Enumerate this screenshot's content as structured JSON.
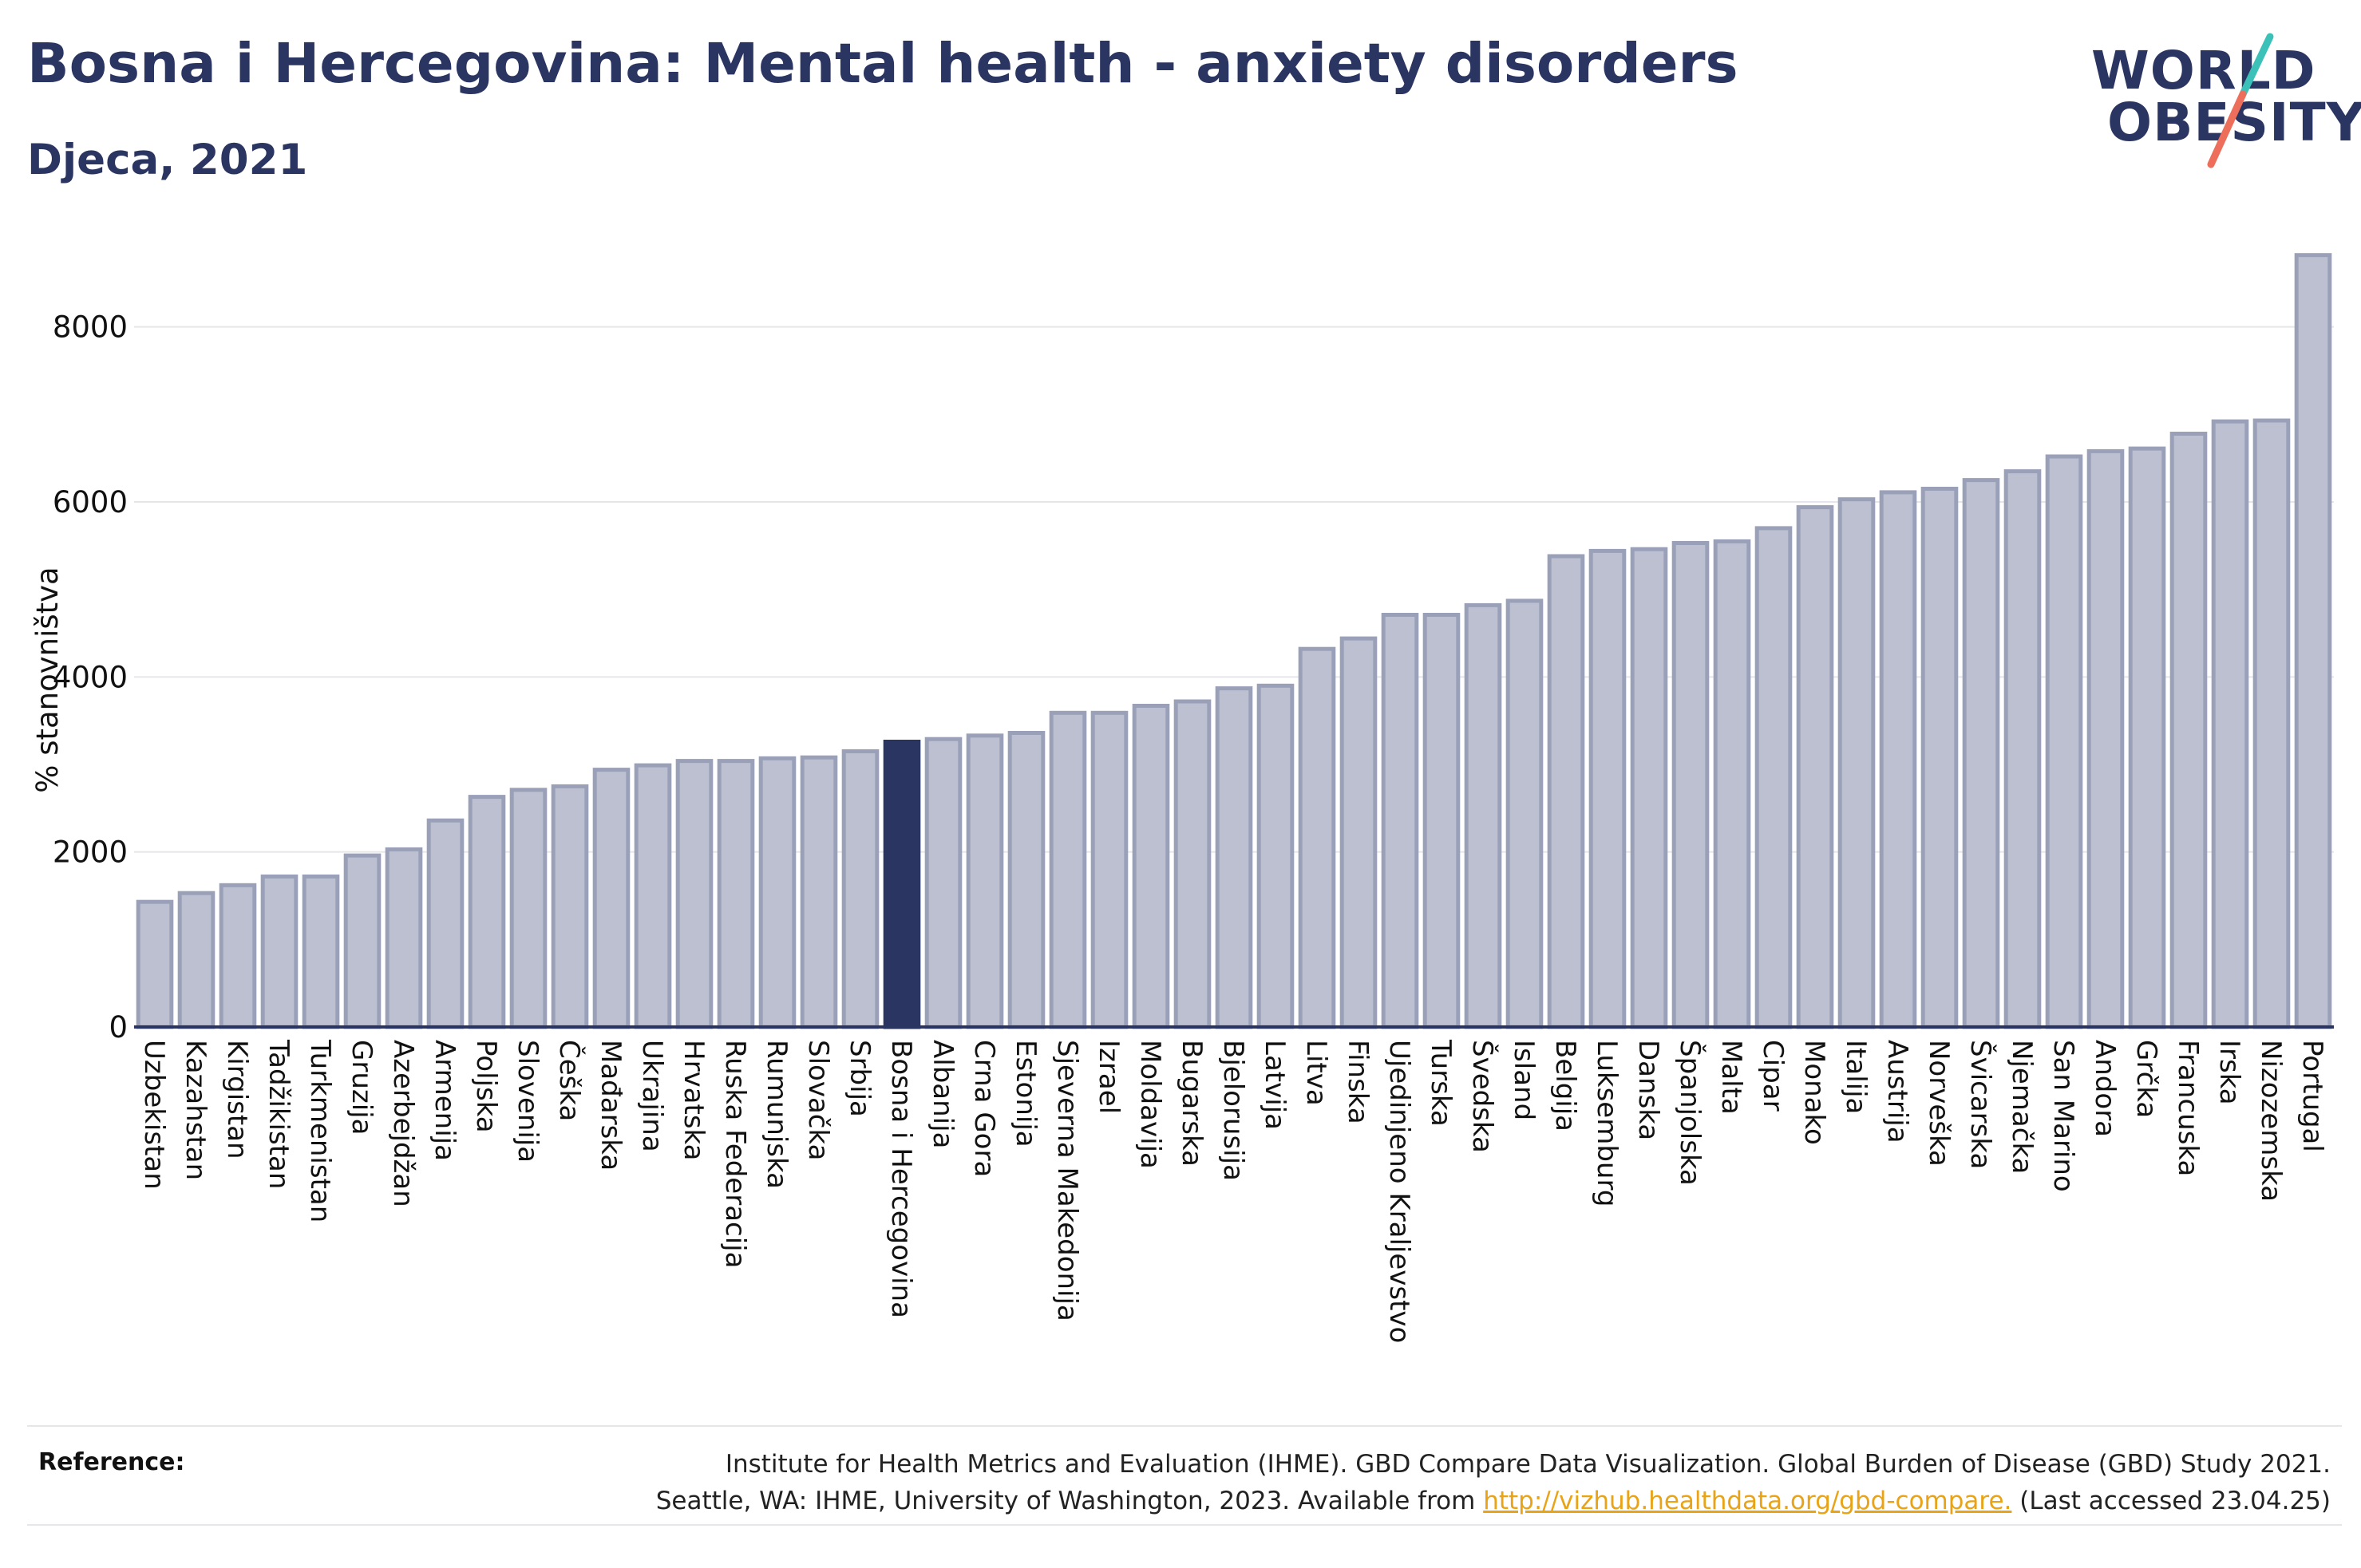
{
  "header": {
    "title": "Bosna i Hercegovina: Mental health - anxiety disorders",
    "subtitle": "Djeca, 2021"
  },
  "logo": {
    "line1": "WORLD",
    "line2": "OBESITY"
  },
  "colors": {
    "bar": "#bcc0d0",
    "bar_stroke": "#9aa0b8",
    "highlight": "#2b3561",
    "grid": "#e6e6ea",
    "axis": "#2b3561",
    "accent_teal": "#3cc1b9",
    "accent_coral": "#ee6e5c"
  },
  "chart_data": {
    "type": "bar",
    "ylabel": "% stanovništva",
    "ylim": [
      0,
      9000
    ],
    "yticks": [
      0,
      2000,
      4000,
      6000,
      8000
    ],
    "grid": true,
    "highlight": "Bosna i Hercegovina",
    "categories": [
      "Uzbekistan",
      "Kazahstan",
      "Kirgistan",
      "Tadžikistan",
      "Turkmenistan",
      "Gruzija",
      "Azerbejdžan",
      "Armenija",
      "Poljska",
      "Slovenija",
      "Češka",
      "Mađarska",
      "Ukrajina",
      "Hrvatska",
      "Ruska Federacija",
      "Rumunjska",
      "Slovačka",
      "Srbija",
      "Bosna i Hercegovina",
      "Albanija",
      "Crna Gora",
      "Estonija",
      "Sjeverna Makedonija",
      "Izrael",
      "Moldavija",
      "Bugarska",
      "Bjelorusija",
      "Latvija",
      "Litva",
      "Finska",
      "Ujedinjeno Kraljevstvo",
      "Turska",
      "Švedska",
      "Island",
      "Belgija",
      "Luksemburg",
      "Danska",
      "Španjolska",
      "Malta",
      "Cipar",
      "Monako",
      "Italija",
      "Austrija",
      "Norveška",
      "Švicarska",
      "Njemačka",
      "San Marino",
      "Andora",
      "Grčka",
      "Francuska",
      "Irska",
      "Nizozemska",
      "Portugal"
    ],
    "values": [
      1430,
      1530,
      1620,
      1720,
      1720,
      1960,
      2030,
      2360,
      2630,
      2710,
      2750,
      2940,
      2990,
      3040,
      3040,
      3070,
      3080,
      3150,
      3260,
      3290,
      3330,
      3360,
      3590,
      3590,
      3670,
      3720,
      3870,
      3900,
      4320,
      4440,
      4710,
      4710,
      4820,
      4870,
      5380,
      5440,
      5460,
      5530,
      5550,
      5700,
      5940,
      6030,
      6110,
      6150,
      6250,
      6350,
      6520,
      6580,
      6610,
      6780,
      6920,
      6930,
      8820
    ]
  },
  "footer": {
    "label": "Reference:",
    "line1": "Institute for Health Metrics and Evaluation (IHME). GBD Compare Data Visualization. Global Burden of Disease (GBD) Study 2021.",
    "line2_pre": "Seattle, WA: IHME, University of Washington, 2023. Available from ",
    "link": "http://vizhub.healthdata.org/gbd-compare.",
    "line2_post": " (Last accessed 23.04.25)"
  }
}
